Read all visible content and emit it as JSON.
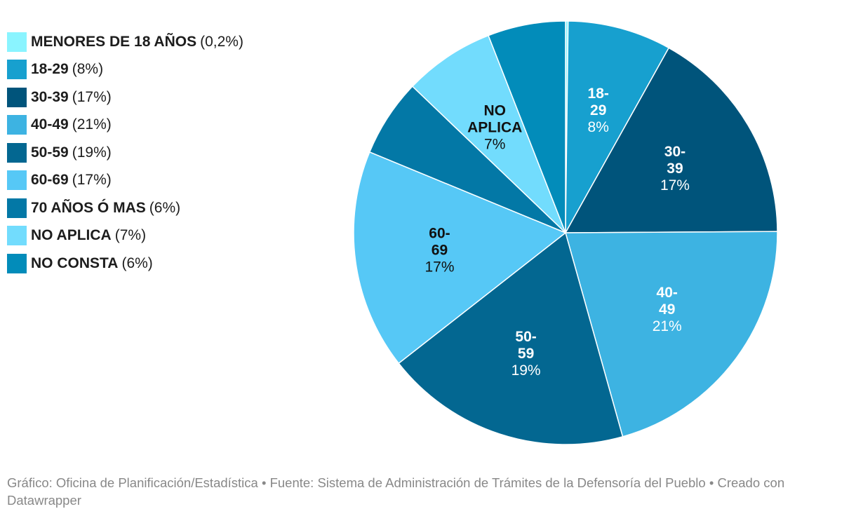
{
  "chart_data": {
    "type": "pie",
    "slices": [
      {
        "label": "MENORES DE 18 AÑOS",
        "value": 0.2,
        "pct_text": "0,2%",
        "color": "#8af4ff",
        "inside_label": false,
        "dark_text": true
      },
      {
        "label": "18-29",
        "value": 8,
        "pct_text": "8%",
        "color": "#17a0cf",
        "inside_label": true,
        "dark_text": false
      },
      {
        "label": "30-39",
        "value": 17,
        "pct_text": "17%",
        "color": "#00547b",
        "inside_label": true,
        "dark_text": false
      },
      {
        "label": "40-49",
        "value": 21,
        "pct_text": "21%",
        "color": "#3db3e2",
        "inside_label": true,
        "dark_text": false
      },
      {
        "label": "50-59",
        "value": 19,
        "pct_text": "19%",
        "color": "#036791",
        "inside_label": true,
        "dark_text": false
      },
      {
        "label": "60-69",
        "value": 17,
        "pct_text": "17%",
        "color": "#56c8f6",
        "inside_label": true,
        "dark_text": true
      },
      {
        "label": "70 AÑOS Ó MAS",
        "value": 6,
        "pct_text": "6%",
        "color": "#0378a6",
        "inside_label": false,
        "dark_text": false
      },
      {
        "label": "NO APLICA",
        "value": 7,
        "pct_text": "7%",
        "color": "#72dcfd",
        "inside_label": true,
        "dark_text": true
      },
      {
        "label": "NO CONSTA",
        "value": 6,
        "pct_text": "6%",
        "color": "#028cba",
        "inside_label": false,
        "dark_text": false
      }
    ],
    "legend_placement": "top-left"
  },
  "footer": {
    "text": "Gráfico: Oficina de Planificación/Estadística • Fuente: Sistema de Administración de Trámites de la Defensoría del Pueblo • Creado con Datawrapper"
  }
}
